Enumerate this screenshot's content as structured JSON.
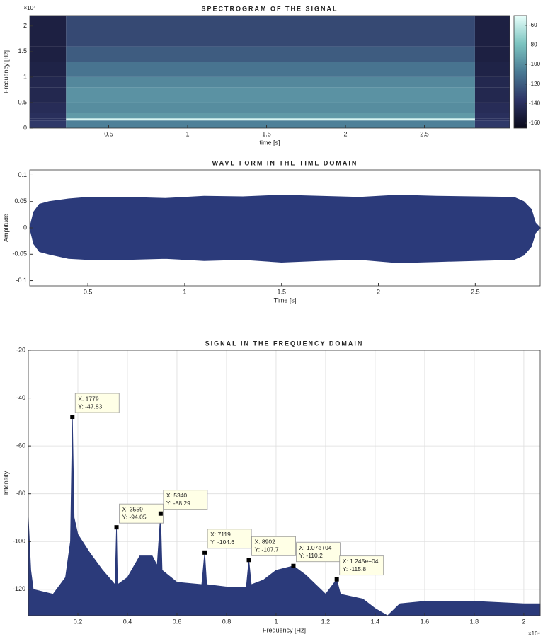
{
  "chart_data": [
    {
      "type": "heatmap",
      "title": "SPECTROGRAM OF THE SIGNAL",
      "x_label": "time [s]",
      "y_label": "Frequency [Hz]",
      "y_exponent": "×10⁴",
      "x_edges": [
        0,
        0.23,
        2.82,
        3.04
      ],
      "y_edges": [
        0,
        0.15,
        0.19,
        0.3,
        0.5,
        0.8,
        1.0,
        1.3,
        1.6,
        2.205
      ],
      "z": [
        [
          -135,
          -105,
          -135
        ],
        [
          -140,
          -55,
          -140
        ],
        [
          -140,
          -95,
          -140
        ],
        [
          -142,
          -100,
          -142
        ],
        [
          -145,
          -98,
          -145
        ],
        [
          -145,
          -102,
          -145
        ],
        [
          -148,
          -110,
          -148
        ],
        [
          -150,
          -120,
          -150
        ],
        [
          -150,
          -128,
          -150
        ]
      ],
      "xlim": [
        0,
        3.04
      ],
      "ylim": [
        0,
        2.205
      ],
      "xticks": [
        0.5,
        1,
        1.5,
        2,
        2.5
      ],
      "yticks": [
        0,
        0.5,
        1,
        1.5,
        2
      ],
      "clim": [
        -165,
        -50
      ],
      "cticks": [
        -60,
        -80,
        -100,
        -120,
        -140,
        -160
      ],
      "colormap": [
        "#0a0a1a",
        "#2e3566",
        "#4a7a94",
        "#7cc4c0",
        "#e8fffb"
      ],
      "grid": false
    },
    {
      "type": "band",
      "title": "WAVE FORM IN THE TIME DOMAIN",
      "x_label": "Time [s]",
      "y_label": "Amplitude",
      "color": "#2b3a7a",
      "x": [
        0.2,
        0.22,
        0.25,
        0.3,
        0.4,
        0.5,
        0.7,
        0.9,
        1.1,
        1.3,
        1.5,
        1.7,
        1.9,
        2.1,
        2.3,
        2.5,
        2.7,
        2.75,
        2.79,
        2.81,
        2.835
      ],
      "upper": [
        0,
        0.03,
        0.045,
        0.05,
        0.055,
        0.058,
        0.058,
        0.056,
        0.06,
        0.059,
        0.062,
        0.06,
        0.058,
        0.062,
        0.06,
        0.059,
        0.058,
        0.05,
        0.035,
        0.01,
        0
      ],
      "lower": [
        0,
        -0.03,
        -0.045,
        -0.05,
        -0.058,
        -0.06,
        -0.06,
        -0.058,
        -0.062,
        -0.06,
        -0.065,
        -0.062,
        -0.06,
        -0.066,
        -0.064,
        -0.062,
        -0.06,
        -0.052,
        -0.035,
        -0.01,
        0
      ],
      "xlim": [
        0.2,
        2.835
      ],
      "ylim": [
        -0.11,
        0.11
      ],
      "xticks": [
        0.5,
        1,
        1.5,
        2,
        2.5
      ],
      "yticks": [
        -0.1,
        -0.05,
        0,
        0.05,
        0.1
      ],
      "grid": false
    },
    {
      "type": "area",
      "title": "SIGNAL IN THE FREQUENCY DOMAIN",
      "x_label": "Frequency [Hz]",
      "y_label": "Intensity",
      "x_exponent": "×10⁴",
      "color": "#2b3a7a",
      "x": [
        0,
        0.01,
        0.02,
        0.1,
        0.15,
        0.17,
        0.1779,
        0.185,
        0.2,
        0.25,
        0.3,
        0.35,
        0.3559,
        0.36,
        0.4,
        0.45,
        0.5,
        0.52,
        0.534,
        0.54,
        0.6,
        0.7,
        0.7119,
        0.72,
        0.8,
        0.88,
        0.8902,
        0.9,
        0.95,
        1.0,
        1.07,
        1.12,
        1.2,
        1.245,
        1.26,
        1.35,
        1.4,
        1.45,
        1.5,
        1.6,
        1.8,
        2.0,
        2.066
      ],
      "values": [
        -90,
        -112,
        -120,
        -122,
        -115,
        -100,
        -47.83,
        -90,
        -97,
        -105,
        -112,
        -118,
        -94.05,
        -118,
        -115,
        -106,
        -106,
        -110,
        -88.29,
        -112,
        -117,
        -118,
        -104.6,
        -118,
        -119,
        -119,
        -107.7,
        -118,
        -116,
        -112,
        -110.2,
        -114,
        -122,
        -115.8,
        -122,
        -124,
        -128,
        -131,
        -126,
        -125,
        -125,
        -126,
        -126
      ],
      "datatips": [
        {
          "x": 0.1779,
          "y": -47.83,
          "x_label": "X: 1779",
          "y_label": "Y: -47.83"
        },
        {
          "x": 0.3559,
          "y": -94.05,
          "x_label": "X: 3559",
          "y_label": "Y: -94.05"
        },
        {
          "x": 0.534,
          "y": -88.29,
          "x_label": "X: 5340",
          "y_label": "Y: -88.29"
        },
        {
          "x": 0.7119,
          "y": -104.6,
          "x_label": "X: 7119",
          "y_label": "Y: -104.6"
        },
        {
          "x": 0.8902,
          "y": -107.7,
          "x_label": "X: 8902",
          "y_label": "Y: -107.7"
        },
        {
          "x": 1.07,
          "y": -110.2,
          "x_label": "X: 1.07e+04",
          "y_label": "Y: -110.2"
        },
        {
          "x": 1.245,
          "y": -115.8,
          "x_label": "X: 1.245e+04",
          "y_label": "Y: -115.8"
        }
      ],
      "xlim": [
        0,
        2.066
      ],
      "ylim": [
        -131,
        -20
      ],
      "xticks": [
        0.2,
        0.4,
        0.6,
        0.8,
        1,
        1.2,
        1.4,
        1.6,
        1.8,
        2
      ],
      "yticks": [
        -120,
        -100,
        -80,
        -60,
        -40,
        -20
      ],
      "grid": true
    }
  ]
}
